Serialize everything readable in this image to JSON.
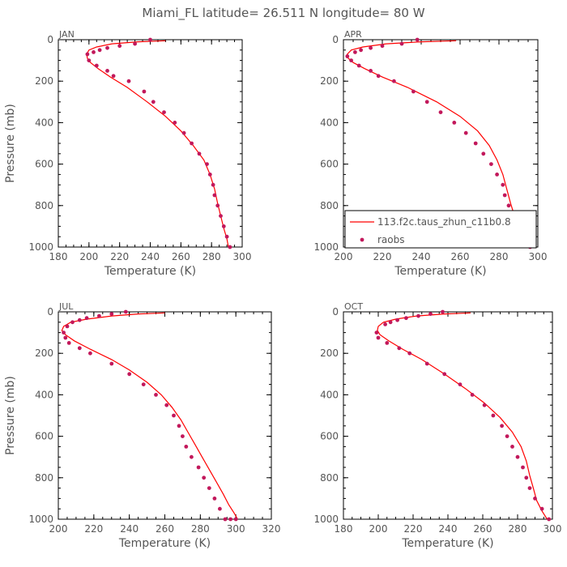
{
  "title": "Miami_FL   latitude= 26.511 N longitude= 80 W",
  "colors": {
    "model": "#ff0000",
    "raobs": "#c2185b",
    "axis": "#000000",
    "text": "#555555"
  },
  "legend": {
    "panel": "APR",
    "entries": [
      "113.f2c.taus_zhun_c11b0.8",
      "raobs"
    ]
  },
  "chart_data": [
    {
      "panel": "JAN",
      "type": "line",
      "xlabel": "Temperature (K)",
      "ylabel": "Pressure (mb)",
      "xlim": [
        180,
        300
      ],
      "ylim": [
        1000,
        0
      ],
      "y_inverted": true,
      "xticks": [
        180,
        200,
        220,
        240,
        260,
        280,
        300
      ],
      "yticks": [
        0,
        200,
        400,
        600,
        800,
        1000
      ],
      "series": [
        {
          "name": "113.f2c.taus_zhun_c11b0.8",
          "kind": "line",
          "x": [
            250,
            232,
            215,
            205,
            200,
            198.5,
            199,
            201,
            206,
            214,
            225,
            238,
            250,
            260,
            268,
            275,
            279,
            282,
            284,
            286,
            288,
            290,
            291
          ],
          "y": [
            5,
            10,
            20,
            35,
            50,
            70,
            90,
            110,
            140,
            180,
            230,
            300,
            370,
            440,
            510,
            580,
            650,
            720,
            790,
            850,
            910,
            960,
            1000
          ]
        },
        {
          "name": "raobs",
          "kind": "scatter",
          "x": [
            240,
            230,
            220,
            212,
            207,
            203,
            199,
            200,
            205,
            212,
            216,
            226,
            236,
            242,
            249,
            256,
            262,
            267,
            272,
            277,
            279,
            281,
            282,
            284,
            286,
            288,
            290,
            292
          ],
          "y": [
            0,
            20,
            30,
            40,
            50,
            60,
            70,
            100,
            125,
            150,
            175,
            200,
            250,
            300,
            350,
            400,
            450,
            500,
            550,
            600,
            650,
            700,
            750,
            800,
            850,
            900,
            950,
            1000
          ]
        }
      ]
    },
    {
      "panel": "APR",
      "type": "line",
      "xlabel": "Temperature (K)",
      "ylabel": "",
      "xlim": [
        200,
        300
      ],
      "ylim": [
        1000,
        0
      ],
      "y_inverted": true,
      "xticks": [
        200,
        220,
        240,
        260,
        280,
        300
      ],
      "yticks": [
        0,
        200,
        400,
        600,
        800,
        1000
      ],
      "series": [
        {
          "name": "113.f2c.taus_zhun_c11b0.8",
          "kind": "line",
          "x": [
            258,
            240,
            222,
            210,
            204,
            202,
            202.5,
            205,
            211,
            220,
            233,
            248,
            260,
            269,
            275,
            279,
            282,
            284,
            286,
            288,
            291,
            294,
            296
          ],
          "y": [
            5,
            10,
            20,
            35,
            50,
            70,
            90,
            110,
            140,
            180,
            230,
            300,
            370,
            440,
            510,
            580,
            650,
            720,
            790,
            850,
            910,
            960,
            1000
          ]
        },
        {
          "name": "raobs",
          "kind": "scatter",
          "x": [
            238,
            230,
            220,
            214,
            209,
            206,
            202,
            204,
            208,
            214,
            218,
            226,
            236,
            243,
            250,
            257,
            263,
            268,
            272,
            276,
            279,
            282,
            283,
            285,
            287,
            290,
            293,
            296
          ],
          "y": [
            0,
            20,
            30,
            40,
            50,
            60,
            80,
            100,
            125,
            150,
            175,
            200,
            250,
            300,
            350,
            400,
            450,
            500,
            550,
            600,
            650,
            700,
            750,
            800,
            850,
            900,
            950,
            1000
          ]
        }
      ]
    },
    {
      "panel": "JUL",
      "type": "line",
      "xlabel": "Temperature (K)",
      "ylabel": "Pressure (mb)",
      "xlim": [
        200,
        320
      ],
      "ylim": [
        1000,
        0
      ],
      "y_inverted": true,
      "xticks": [
        200,
        220,
        240,
        260,
        280,
        300,
        320
      ],
      "yticks": [
        0,
        200,
        400,
        600,
        800,
        1000
      ],
      "series": [
        {
          "name": "113.f2c.taus_zhun_c11b0.8",
          "kind": "line",
          "x": [
            260,
            245,
            230,
            216,
            207,
            203,
            202,
            204,
            209,
            218,
            230,
            240,
            250,
            258,
            264,
            269,
            273,
            277,
            281,
            285,
            289,
            293,
            296,
            299,
            301
          ],
          "y": [
            5,
            10,
            20,
            35,
            50,
            70,
            90,
            110,
            140,
            180,
            230,
            280,
            340,
            400,
            460,
            520,
            580,
            640,
            700,
            760,
            820,
            880,
            930,
            970,
            1000
          ]
        },
        {
          "name": "raobs",
          "kind": "scatter",
          "x": [
            238,
            230,
            223,
            216,
            212,
            208,
            205,
            203,
            204,
            206,
            212,
            218,
            230,
            240,
            248,
            255,
            261,
            265,
            268,
            270,
            272,
            275,
            279,
            282,
            285,
            288,
            291,
            294,
            297,
            300
          ],
          "y": [
            0,
            10,
            20,
            30,
            40,
            50,
            70,
            100,
            125,
            150,
            175,
            200,
            250,
            300,
            350,
            400,
            450,
            500,
            550,
            600,
            650,
            700,
            750,
            800,
            850,
            900,
            950,
            1000,
            1000,
            1000
          ]
        }
      ]
    },
    {
      "panel": "OCT",
      "type": "line",
      "xlabel": "Temperature (K)",
      "ylabel": "",
      "xlim": [
        180,
        300
      ],
      "ylim": [
        1000,
        0
      ],
      "y_inverted": true,
      "xticks": [
        180,
        200,
        220,
        240,
        260,
        280,
        300
      ],
      "yticks": [
        0,
        200,
        400,
        600,
        800,
        1000
      ],
      "series": [
        {
          "name": "113.f2c.taus_zhun_c11b0.8",
          "kind": "line",
          "x": [
            253,
            238,
            222,
            210,
            203,
            200,
            199.5,
            201,
            206,
            214,
            225,
            238,
            250,
            261,
            270,
            277,
            282,
            285,
            287,
            289,
            291,
            294,
            297
          ],
          "y": [
            5,
            10,
            20,
            35,
            50,
            70,
            90,
            110,
            140,
            180,
            230,
            300,
            370,
            440,
            510,
            580,
            650,
            720,
            790,
            850,
            910,
            960,
            1000
          ]
        },
        {
          "name": "raobs",
          "kind": "scatter",
          "x": [
            237,
            230,
            223,
            216,
            211,
            207,
            204,
            199,
            200,
            205,
            212,
            218,
            228,
            238,
            247,
            254,
            261,
            266,
            271,
            274,
            277,
            280,
            283,
            285,
            287,
            290,
            294,
            298
          ],
          "y": [
            0,
            10,
            20,
            30,
            40,
            50,
            60,
            100,
            125,
            150,
            175,
            200,
            250,
            300,
            350,
            400,
            450,
            500,
            550,
            600,
            650,
            700,
            750,
            800,
            850,
            900,
            950,
            1000
          ]
        }
      ]
    }
  ]
}
